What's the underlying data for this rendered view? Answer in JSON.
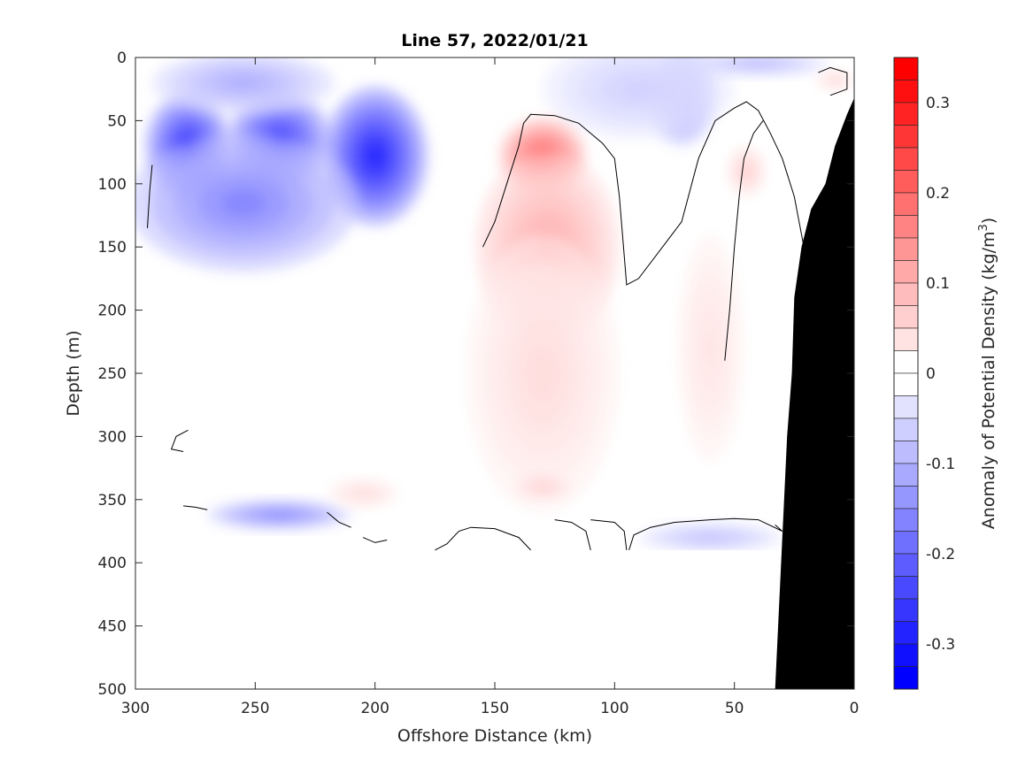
{
  "chart_data": {
    "type": "heatmap",
    "title": "Line 57, 2022/01/21",
    "xlabel": "Offshore Distance (km)",
    "ylabel": "Depth (m)",
    "colorbar_label": "Anomaly of Potential Density (kg/m",
    "colorbar_unit_exponent": "3",
    "colorbar_label_close": ")",
    "xlim": [
      300,
      0
    ],
    "ylim": [
      0,
      500
    ],
    "clim": [
      -0.35,
      0.35
    ],
    "x_reversed": true,
    "y_reversed": true,
    "x_ticks": [
      300,
      250,
      200,
      150,
      100,
      50,
      0
    ],
    "y_ticks": [
      0,
      50,
      100,
      150,
      200,
      250,
      300,
      350,
      400,
      450,
      500
    ],
    "colorbar_ticks": [
      {
        "value": 0.3,
        "label": "0.3"
      },
      {
        "value": 0.2,
        "label": "0.2"
      },
      {
        "value": 0.1,
        "label": "0.1"
      },
      {
        "value": 0.0,
        "label": "0"
      },
      {
        "value": -0.1,
        "label": "-0.1"
      },
      {
        "value": -0.2,
        "label": "-0.2"
      },
      {
        "value": -0.3,
        "label": "-0.3"
      }
    ],
    "colorbar_levels": 28,
    "data_depth_limit_m": 390,
    "colors": {
      "negative": "#0000ff",
      "positive": "#ff0000",
      "zero": "#ffffff",
      "bathymetry": "#000000",
      "contour": "#000000"
    },
    "anomaly_features": [
      {
        "sign": "negative",
        "x": 278,
        "y": 70,
        "value": -0.3,
        "rx": 18,
        "ry": 42
      },
      {
        "sign": "negative",
        "x": 240,
        "y": 65,
        "value": -0.28,
        "rx": 22,
        "ry": 38
      },
      {
        "sign": "negative",
        "x": 200,
        "y": 78,
        "value": -0.33,
        "rx": 22,
        "ry": 55
      },
      {
        "sign": "negative",
        "x": 255,
        "y": 115,
        "value": -0.18,
        "rx": 48,
        "ry": 55
      },
      {
        "sign": "negative",
        "x": 255,
        "y": 20,
        "value": -0.12,
        "rx": 38,
        "ry": 25
      },
      {
        "sign": "negative",
        "x": 72,
        "y": 30,
        "value": -0.18,
        "rx": 14,
        "ry": 40
      },
      {
        "sign": "negative",
        "x": 90,
        "y": 25,
        "value": -0.07,
        "rx": 40,
        "ry": 40
      },
      {
        "sign": "negative",
        "x": 240,
        "y": 362,
        "value": -0.17,
        "rx": 30,
        "ry": 12
      },
      {
        "sign": "negative",
        "x": 60,
        "y": 380,
        "value": -0.09,
        "rx": 30,
        "ry": 12
      },
      {
        "sign": "negative",
        "x": 40,
        "y": 5,
        "value": -0.1,
        "rx": 30,
        "ry": 10
      },
      {
        "sign": "positive",
        "x": 130,
        "y": 78,
        "value": 0.22,
        "rx": 18,
        "ry": 30
      },
      {
        "sign": "positive",
        "x": 128,
        "y": 150,
        "value": 0.12,
        "rx": 30,
        "ry": 75
      },
      {
        "sign": "positive",
        "x": 130,
        "y": 250,
        "value": 0.05,
        "rx": 32,
        "ry": 110
      },
      {
        "sign": "positive",
        "x": 130,
        "y": 340,
        "value": 0.07,
        "rx": 12,
        "ry": 10
      },
      {
        "sign": "positive",
        "x": 45,
        "y": 90,
        "value": 0.07,
        "rx": 8,
        "ry": 20
      },
      {
        "sign": "positive",
        "x": 60,
        "y": 230,
        "value": 0.04,
        "rx": 14,
        "ry": 90
      },
      {
        "sign": "positive",
        "x": 8,
        "y": 18,
        "value": 0.06,
        "rx": 8,
        "ry": 8
      },
      {
        "sign": "positive",
        "x": 205,
        "y": 345,
        "value": 0.05,
        "rx": 15,
        "ry": 12
      }
    ],
    "zero_contours": [
      [
        [
          155,
          150
        ],
        [
          150,
          130
        ],
        [
          145,
          100
        ],
        [
          140,
          70
        ],
        [
          138,
          52
        ],
        [
          135,
          45
        ],
        [
          125,
          46
        ],
        [
          115,
          52
        ],
        [
          105,
          68
        ],
        [
          100,
          80
        ],
        [
          98,
          110
        ],
        [
          95,
          180
        ],
        [
          90,
          175
        ],
        [
          80,
          150
        ],
        [
          72,
          130
        ],
        [
          65,
          80
        ],
        [
          58,
          50
        ],
        [
          50,
          40
        ],
        [
          45,
          35
        ],
        [
          40,
          42
        ],
        [
          35,
          60
        ],
        [
          30,
          80
        ],
        [
          25,
          110
        ],
        [
          20,
          160
        ],
        [
          15,
          220
        ]
      ],
      [
        [
          295,
          135
        ],
        [
          294,
          105
        ],
        [
          293,
          85
        ]
      ],
      [
        [
          38,
          50
        ],
        [
          42,
          60
        ],
        [
          46,
          80
        ],
        [
          48,
          110
        ],
        [
          50,
          150
        ],
        [
          52,
          200
        ],
        [
          54,
          240
        ]
      ],
      [
        [
          15,
          12
        ],
        [
          10,
          8
        ],
        [
          3,
          12
        ],
        [
          3,
          25
        ],
        [
          10,
          30
        ]
      ],
      [
        [
          278,
          295
        ],
        [
          283,
          300
        ],
        [
          285,
          310
        ],
        [
          280,
          312
        ]
      ],
      [
        [
          280,
          355
        ],
        [
          275,
          356
        ],
        [
          270,
          358
        ]
      ],
      [
        [
          175,
          390
        ],
        [
          170,
          385
        ],
        [
          165,
          375
        ],
        [
          160,
          372
        ],
        [
          150,
          373
        ],
        [
          140,
          380
        ],
        [
          135,
          390
        ]
      ],
      [
        [
          110,
          390
        ],
        [
          112,
          375
        ],
        [
          118,
          368
        ],
        [
          125,
          366
        ]
      ],
      [
        [
          95,
          390
        ],
        [
          96,
          375
        ],
        [
          100,
          368
        ],
        [
          110,
          366
        ]
      ],
      [
        [
          220,
          360
        ],
        [
          215,
          368
        ],
        [
          210,
          372
        ]
      ],
      [
        [
          205,
          380
        ],
        [
          200,
          384
        ],
        [
          195,
          382
        ]
      ],
      [
        [
          33,
          370
        ],
        [
          30,
          375
        ],
        [
          40,
          366
        ],
        [
          50,
          365
        ],
        [
          60,
          366
        ],
        [
          75,
          368
        ],
        [
          85,
          372
        ],
        [
          92,
          378
        ],
        [
          94,
          390
        ]
      ]
    ],
    "bathymetry": [
      [
        33,
        500
      ],
      [
        30,
        380
      ],
      [
        28,
        300
      ],
      [
        26,
        250
      ],
      [
        25,
        190
      ],
      [
        22,
        150
      ],
      [
        18,
        120
      ],
      [
        12,
        100
      ],
      [
        8,
        70
      ],
      [
        3,
        45
      ],
      [
        0,
        32
      ],
      [
        0,
        500
      ]
    ]
  }
}
